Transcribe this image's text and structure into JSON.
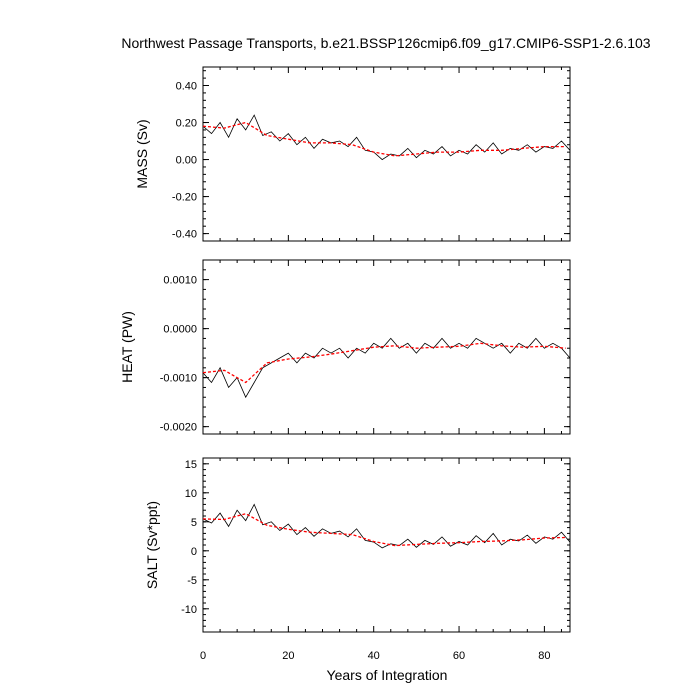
{
  "chart_data": {
    "type": "line",
    "title": "Northwest Passage Transports, b.e21.BSSP126cmip6.f09_g17.CMIP6-SSP1-2.6.103",
    "xlabel": "Years of Integration",
    "xlim": [
      0,
      86
    ],
    "x_ticks": [
      0,
      20,
      40,
      60,
      80
    ],
    "x_tick_labels": [
      "0",
      "20",
      "40",
      "60",
      "80"
    ],
    "colors": {
      "raw": "#000000",
      "smoothed": "#ff0000"
    },
    "grid": false,
    "panels": [
      {
        "ylabel": "MASS (Sv)",
        "ylim": [
          -0.44,
          0.5
        ],
        "y_ticks": [
          0.4,
          0.2,
          0.0,
          -0.2,
          -0.4
        ],
        "y_tick_labels": [
          "0.40",
          "0.20",
          "0.00",
          "-0.20",
          "-0.40"
        ],
        "series": [
          {
            "style": "raw",
            "x": [
              0,
              2,
              4,
              6,
              8,
              10,
              12,
              14,
              16,
              18,
              20,
              22,
              24,
              26,
              28,
              30,
              32,
              34,
              36,
              38,
              40,
              42,
              44,
              46,
              48,
              50,
              52,
              54,
              56,
              58,
              60,
              62,
              64,
              66,
              68,
              70,
              72,
              74,
              76,
              78,
              80,
              82,
              84,
              86
            ],
            "values": [
              0.18,
              0.14,
              0.2,
              0.12,
              0.22,
              0.16,
              0.24,
              0.13,
              0.15,
              0.1,
              0.14,
              0.08,
              0.12,
              0.06,
              0.11,
              0.09,
              0.1,
              0.07,
              0.12,
              0.05,
              0.04,
              0.0,
              0.03,
              0.02,
              0.06,
              0.01,
              0.05,
              0.03,
              0.07,
              0.02,
              0.05,
              0.03,
              0.08,
              0.04,
              0.09,
              0.03,
              0.06,
              0.05,
              0.08,
              0.04,
              0.07,
              0.06,
              0.1,
              0.05
            ]
          },
          {
            "style": "smoothed",
            "x": [
              0,
              5,
              10,
              15,
              20,
              25,
              30,
              35,
              40,
              45,
              50,
              55,
              60,
              65,
              70,
              75,
              80,
              85
            ],
            "values": [
              0.18,
              0.17,
              0.2,
              0.13,
              0.11,
              0.09,
              0.09,
              0.08,
              0.04,
              0.02,
              0.03,
              0.04,
              0.04,
              0.05,
              0.05,
              0.06,
              0.07,
              0.07
            ]
          }
        ]
      },
      {
        "ylabel": "HEAT (PW)",
        "ylim": [
          -0.00215,
          0.0014
        ],
        "y_ticks": [
          0.001,
          0.0,
          -0.001,
          -0.002
        ],
        "y_tick_labels": [
          "0.0010",
          "0.0000",
          "-0.0010",
          "-0.0020"
        ],
        "series": [
          {
            "style": "raw",
            "x": [
              0,
              2,
              4,
              6,
              8,
              10,
              12,
              14,
              16,
              18,
              20,
              22,
              24,
              26,
              28,
              30,
              32,
              34,
              36,
              38,
              40,
              42,
              44,
              46,
              48,
              50,
              52,
              54,
              56,
              58,
              60,
              62,
              64,
              66,
              68,
              70,
              72,
              74,
              76,
              78,
              80,
              82,
              84,
              86
            ],
            "values": [
              -0.0009,
              -0.0011,
              -0.0008,
              -0.0012,
              -0.001,
              -0.0014,
              -0.0011,
              -0.0008,
              -0.0007,
              -0.0006,
              -0.0005,
              -0.0007,
              -0.0005,
              -0.0006,
              -0.0004,
              -0.0005,
              -0.0004,
              -0.0006,
              -0.0004,
              -0.0005,
              -0.0003,
              -0.0004,
              -0.0002,
              -0.0004,
              -0.0003,
              -0.0005,
              -0.0003,
              -0.0004,
              -0.0002,
              -0.0004,
              -0.0003,
              -0.0004,
              -0.0002,
              -0.0003,
              -0.0004,
              -0.0003,
              -0.0005,
              -0.0003,
              -0.0004,
              -0.0002,
              -0.0004,
              -0.0003,
              -0.0004,
              -0.0006
            ]
          },
          {
            "style": "smoothed",
            "x": [
              0,
              5,
              10,
              15,
              20,
              25,
              30,
              35,
              40,
              45,
              50,
              55,
              60,
              65,
              70,
              75,
              80,
              85
            ],
            "values": [
              -0.0009,
              -0.00085,
              -0.0011,
              -0.0007,
              -0.00062,
              -0.00058,
              -0.00052,
              -0.00045,
              -0.00038,
              -0.00035,
              -0.0004,
              -0.00038,
              -0.00036,
              -0.0003,
              -0.00035,
              -0.00038,
              -0.00036,
              -0.0004
            ]
          }
        ]
      },
      {
        "ylabel": "SALT (Sv*ppt)",
        "ylim": [
          -14,
          16
        ],
        "y_ticks": [
          15,
          10,
          5,
          0,
          -5,
          -10
        ],
        "y_tick_labels": [
          "15",
          "10",
          "5",
          "0",
          "-5",
          "-10"
        ],
        "series": [
          {
            "style": "raw",
            "x": [
              0,
              2,
              4,
              6,
              8,
              10,
              12,
              14,
              16,
              18,
              20,
              22,
              24,
              26,
              28,
              30,
              32,
              34,
              36,
              38,
              40,
              42,
              44,
              46,
              48,
              50,
              52,
              54,
              56,
              58,
              60,
              62,
              64,
              66,
              68,
              70,
              72,
              74,
              76,
              78,
              80,
              82,
              84,
              86
            ],
            "values": [
              5.5,
              4.8,
              6.5,
              4.2,
              7.0,
              5.2,
              8.0,
              4.5,
              5.0,
              3.5,
              4.6,
              2.8,
              4.0,
              2.5,
              3.8,
              3.0,
              3.4,
              2.4,
              3.8,
              1.8,
              1.5,
              0.5,
              1.2,
              0.9,
              2.0,
              0.6,
              1.8,
              1.1,
              2.4,
              0.8,
              1.6,
              1.0,
              2.6,
              1.4,
              3.0,
              1.0,
              2.0,
              1.7,
              2.7,
              1.3,
              2.4,
              2.0,
              3.2,
              1.5
            ]
          },
          {
            "style": "smoothed",
            "x": [
              0,
              5,
              10,
              15,
              20,
              25,
              30,
              35,
              40,
              45,
              50,
              55,
              60,
              65,
              70,
              75,
              80,
              85
            ],
            "values": [
              5.5,
              5.4,
              6.4,
              4.4,
              3.7,
              3.2,
              3.0,
              2.8,
              1.6,
              0.9,
              1.1,
              1.3,
              1.4,
              1.6,
              1.7,
              1.9,
              2.2,
              2.3
            ]
          }
        ]
      }
    ]
  }
}
